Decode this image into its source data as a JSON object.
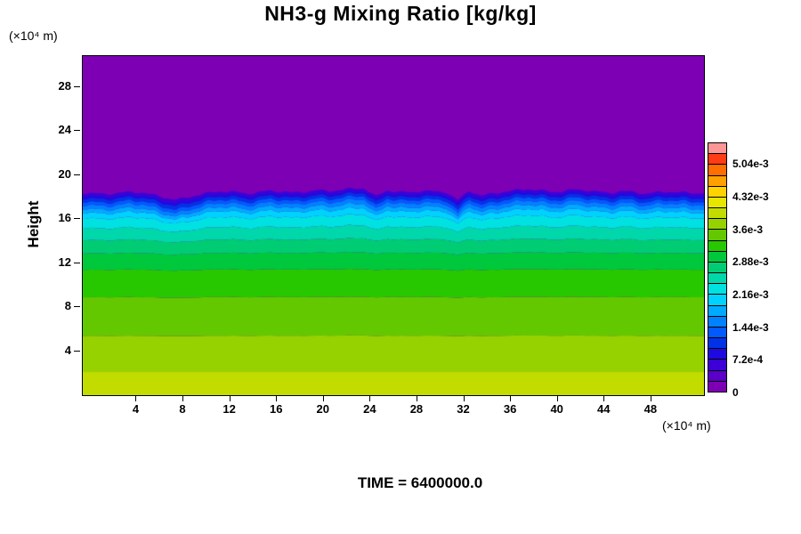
{
  "time_label": "TIME = 6400000.0",
  "chart_data": {
    "type": "heatmap",
    "title": "NH3-g Mixing Ratio [kg/kg]",
    "ylabel": "Height",
    "ylabel_units": "(×10⁴ m)",
    "xlabel_units": "(×10⁴ m)",
    "xlim": [
      -0.6,
      52.5
    ],
    "ylim": [
      0,
      30.8
    ],
    "x_ticks": [
      4,
      8,
      12,
      16,
      20,
      24,
      28,
      32,
      36,
      40,
      44,
      48
    ],
    "y_ticks": [
      4,
      8,
      12,
      16,
      20,
      24,
      28
    ],
    "grid": false,
    "legend_position": "right-colorbar",
    "colorbar": {
      "position": "right",
      "n_segments": 23,
      "segment_value": 0.00024,
      "colors": [
        "#7d00b4",
        "#5a00c8",
        "#3c00d7",
        "#1e0ae1",
        "#0032e6",
        "#005aff",
        "#0082ff",
        "#00aaff",
        "#00d2ff",
        "#00e1e1",
        "#00d7aa",
        "#00cd73",
        "#00c83c",
        "#28c800",
        "#64c800",
        "#96d200",
        "#c3dc00",
        "#e6e600",
        "#ffd200",
        "#ffa000",
        "#ff6e00",
        "#ff3c14",
        "#ff9696"
      ],
      "labels": [
        "0",
        "7.2e-4",
        "1.44e-3",
        "2.16e-3",
        "2.88e-3",
        "3.6e-3",
        "4.32e-3",
        "5.04e-3"
      ],
      "label_every_n_segments": 3
    },
    "field": {
      "description": "Horizontally stratified NH3 gas mixing ratio: ~3.9e-3 kg/kg near the surface, decreasing with height, sharp wavy inversion (dark blue band) near height 17-18 (x10^4 m), zero (purple) above.",
      "top_color": "#7d00b4",
      "top_value": 0,
      "bands": [
        {
          "top": 2.1,
          "amp": 0.0,
          "color": "#c3dc00",
          "value": 0.00384
        },
        {
          "top": 5.4,
          "amp": 0.05,
          "color": "#96d200",
          "value": 0.0036
        },
        {
          "top": 8.9,
          "amp": 0.08,
          "color": "#64c800",
          "value": 0.00336
        },
        {
          "top": 11.4,
          "amp": 0.12,
          "color": "#28c800",
          "value": 0.00312
        },
        {
          "top": 12.9,
          "amp": 0.18,
          "color": "#00c83c",
          "value": 0.00288
        },
        {
          "top": 14.1,
          "amp": 0.28,
          "color": "#00cd73",
          "value": 0.00264
        },
        {
          "top": 15.2,
          "amp": 0.45,
          "color": "#00d7aa",
          "value": 0.0024
        },
        {
          "top": 16.1,
          "amp": 0.6,
          "color": "#00e1e1",
          "value": 0.00216
        },
        {
          "top": 16.6,
          "amp": 0.75,
          "color": "#00d2ff",
          "value": 0.00192
        },
        {
          "top": 16.95,
          "amp": 0.85,
          "color": "#00aaff",
          "value": 0.00168
        },
        {
          "top": 17.3,
          "amp": 0.9,
          "color": "#0082ff",
          "value": 0.00144
        },
        {
          "top": 17.6,
          "amp": 0.9,
          "color": "#005aff",
          "value": 0.0012
        },
        {
          "top": 17.9,
          "amp": 0.85,
          "color": "#0032e6",
          "value": 0.00096
        },
        {
          "top": 18.15,
          "amp": 0.8,
          "color": "#1e0ae1",
          "value": 0.00072
        },
        {
          "top": 18.4,
          "amp": 0.75,
          "color": "#3c00d7",
          "value": 0.00048
        }
      ],
      "wave": [
        0.0,
        -0.1,
        -0.15,
        -0.05,
        0.1,
        0.05,
        -0.25,
        -0.6,
        -0.85,
        -0.55,
        -0.2,
        0.05,
        0.2,
        0.1,
        -0.1,
        0.05,
        0.25,
        0.15,
        0.0,
        0.15,
        0.3,
        0.2,
        0.35,
        0.5,
        0.55,
        -0.45,
        0.3,
        0.1,
        0.05,
        0.25,
        0.15,
        0.1,
        -0.9,
        0.25,
        -0.35,
        -0.1,
        0.15,
        0.3,
        0.45,
        0.3,
        0.1,
        0.2,
        0.4,
        0.3,
        0.1,
        0.0,
        0.2,
        0.1,
        -0.1,
        0.05,
        0.15,
        0.05,
        -0.05,
        0.0
      ]
    }
  }
}
